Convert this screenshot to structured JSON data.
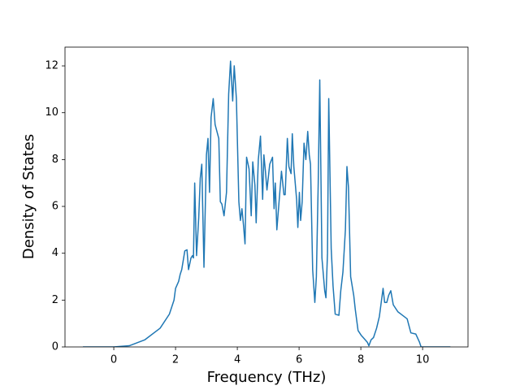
{
  "chart_data": {
    "type": "line",
    "xlabel": "Frequency (THz)",
    "ylabel": "Density of States",
    "xlim": [
      -1.58,
      11.47
    ],
    "ylim": [
      0,
      12.8
    ],
    "xticks": [
      0,
      2,
      4,
      6,
      8,
      10
    ],
    "yticks": [
      0,
      2,
      4,
      6,
      8,
      10,
      12
    ],
    "grid": false,
    "x": [
      -1,
      0,
      0.5,
      1,
      1.5,
      1.8,
      1.95,
      2.0,
      2.1,
      2.15,
      2.2,
      2.3,
      2.37,
      2.42,
      2.5,
      2.55,
      2.58,
      2.62,
      2.68,
      2.75,
      2.8,
      2.85,
      2.92,
      3.0,
      3.05,
      3.1,
      3.15,
      3.22,
      3.28,
      3.4,
      3.45,
      3.5,
      3.57,
      3.65,
      3.72,
      3.78,
      3.85,
      3.9,
      3.97,
      4.05,
      4.1,
      4.15,
      4.2,
      4.25,
      4.3,
      4.38,
      4.45,
      4.5,
      4.57,
      4.61,
      4.68,
      4.75,
      4.82,
      4.86,
      4.91,
      4.96,
      5.05,
      5.14,
      5.19,
      5.23,
      5.28,
      5.37,
      5.43,
      5.51,
      5.55,
      5.62,
      5.67,
      5.74,
      5.78,
      5.83,
      5.92,
      5.96,
      6.01,
      6.05,
      6.1,
      6.16,
      6.22,
      6.28,
      6.33,
      6.37,
      6.44,
      6.51,
      6.56,
      6.62,
      6.67,
      6.74,
      6.83,
      6.87,
      6.92,
      6.96,
      7.04,
      7.1,
      7.17,
      7.29,
      7.35,
      7.42,
      7.5,
      7.55,
      7.6,
      7.67,
      7.77,
      7.82,
      7.91,
      8.01,
      8.11,
      8.21,
      8.26,
      8.33,
      8.41,
      8.51,
      8.6,
      8.72,
      8.77,
      8.84,
      8.9,
      8.97,
      9.05,
      9.2,
      9.35,
      9.5,
      9.62,
      9.78,
      9.9,
      9.95,
      10.9
    ],
    "series": [
      {
        "color": "#1f77b4",
        "values": [
          0,
          0,
          0.05,
          0.3,
          0.8,
          1.4,
          2.0,
          2.5,
          2.8,
          3.1,
          3.3,
          4.1,
          4.15,
          3.3,
          3.8,
          3.9,
          3.8,
          7.0,
          3.9,
          5.5,
          7.2,
          7.8,
          3.4,
          8.2,
          8.9,
          6.6,
          9.8,
          10.6,
          9.5,
          8.9,
          6.2,
          6.1,
          5.6,
          6.6,
          10.8,
          12.2,
          10.5,
          12.0,
          10.6,
          6.2,
          5.4,
          5.9,
          5.2,
          4.4,
          8.1,
          7.6,
          5.6,
          7.9,
          6.9,
          5.3,
          8.0,
          9.0,
          6.3,
          8.2,
          7.5,
          6.7,
          7.8,
          8.1,
          5.9,
          7.0,
          5.0,
          6.5,
          7.5,
          6.5,
          6.5,
          8.9,
          7.7,
          7.4,
          9.1,
          7.7,
          6.3,
          5.1,
          6.6,
          5.4,
          6.2,
          8.7,
          8.0,
          9.2,
          8.2,
          7.8,
          3.3,
          1.9,
          3.0,
          7.0,
          11.4,
          3.8,
          2.4,
          2.1,
          4.0,
          10.6,
          4.2,
          2.6,
          1.4,
          1.35,
          2.4,
          3.2,
          5.0,
          7.7,
          6.8,
          3.0,
          2.2,
          1.6,
          0.7,
          0.5,
          0.35,
          0.2,
          0.05,
          0.3,
          0.4,
          0.8,
          1.3,
          2.5,
          1.9,
          1.9,
          2.2,
          2.4,
          1.8,
          1.5,
          1.35,
          1.2,
          0.6,
          0.55,
          0.2,
          0,
          0
        ]
      }
    ]
  }
}
